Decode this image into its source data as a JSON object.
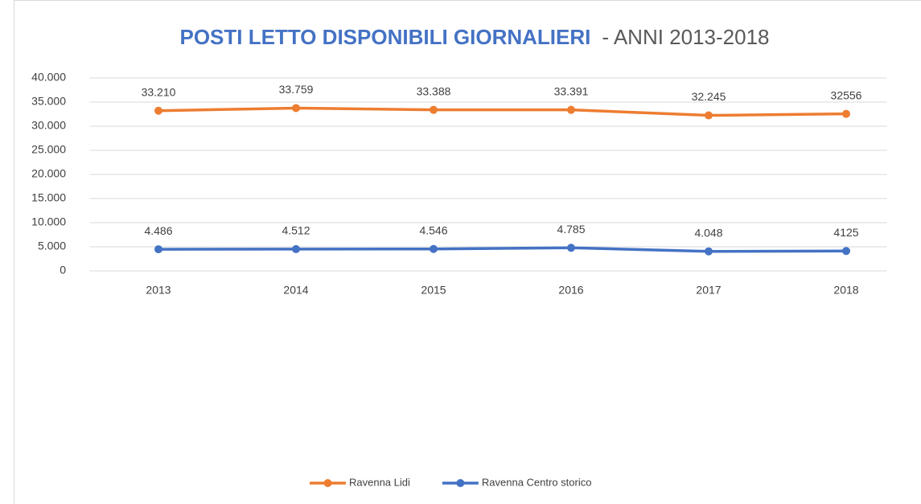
{
  "chart_data": {
    "type": "line",
    "title": "POSTI LETTO DISPONIBILI GIORNALIERI",
    "subtitle": "- ANNI 2013-2018",
    "categories": [
      "2013",
      "2014",
      "2015",
      "2016",
      "2017",
      "2018"
    ],
    "series": [
      {
        "name": "Ravenna Lidi",
        "color": "#ed7d31",
        "values": [
          33210,
          33759,
          33388,
          33391,
          32245,
          32556
        ],
        "value_labels": [
          "33.210",
          "33.759",
          "33.388",
          "33.391",
          "32.245",
          "32556"
        ]
      },
      {
        "name": "Ravenna Centro storico",
        "color": "#4472c4",
        "values": [
          4486,
          4512,
          4546,
          4785,
          4048,
          4125
        ],
        "value_labels": [
          "4.486",
          "4.512",
          "4.546",
          "4.785",
          "4.048",
          "4125"
        ]
      }
    ],
    "ylim": [
      0,
      40000
    ],
    "yticks": [
      0,
      {
        "value": 5000,
        "label": "5.000"
      },
      {
        "value": 10000,
        "label": "10.000"
      },
      {
        "value": 15000,
        "label": "15.000"
      },
      {
        "value": 20000,
        "label": "20.000"
      },
      {
        "value": 25000,
        "label": "25.000"
      },
      {
        "value": 30000,
        "label": "30.000"
      },
      {
        "value": 35000,
        "label": "35.000"
      },
      {
        "value": 40000,
        "label": "40.000"
      }
    ],
    "grid": true,
    "legend": "bottom"
  }
}
